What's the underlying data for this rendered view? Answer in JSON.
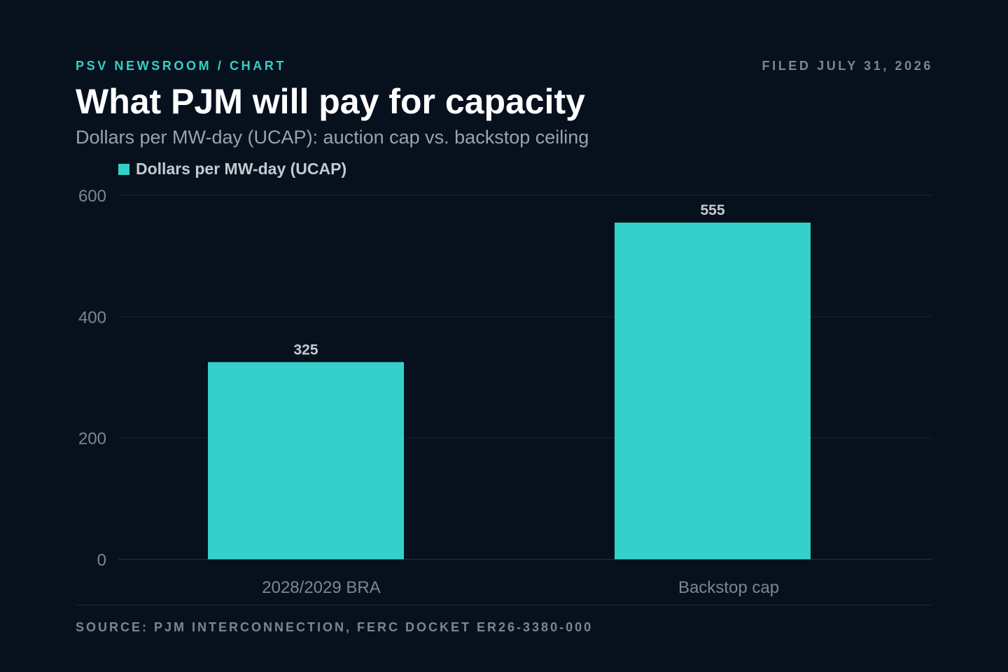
{
  "header": {
    "eyebrow": "PSV NEWSROOM / CHART",
    "dateline": "FILED JULY 31, 2026",
    "title": "What PJM will pay for capacity",
    "subtitle": "Dollars per MW-day (UCAP): auction cap vs. backstop ceiling"
  },
  "legend": {
    "label": "Dollars per MW-day (UCAP)",
    "swatch_color": "#35cfc9"
  },
  "footer": {
    "source": "SOURCE: PJM INTERCONNECTION, FERC DOCKET ER26-3380-000"
  },
  "chart_data": {
    "type": "bar",
    "categories": [
      "2028/2029 BRA",
      "Backstop cap"
    ],
    "series": [
      {
        "name": "Dollars per MW-day (UCAP)",
        "values": [
          325,
          555
        ]
      }
    ],
    "ylim": [
      0,
      600
    ],
    "yticks": [
      0,
      200,
      400,
      600
    ],
    "grid": true,
    "legend_position": "top-left",
    "bar_color": "#35cfc9",
    "data_labels": [
      "325",
      "555"
    ]
  }
}
